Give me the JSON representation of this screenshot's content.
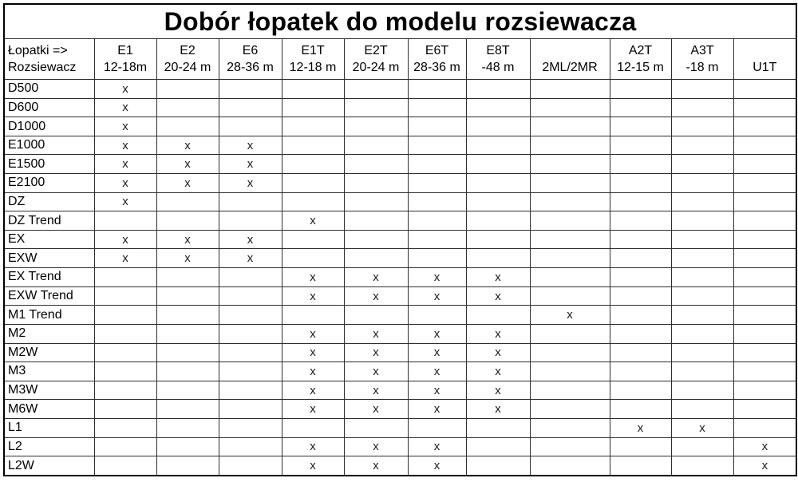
{
  "title": "Dobór łopatek do modelu rozsiewacza",
  "corner": {
    "line1": "Łopatki =>",
    "line2": "Rozsiewacz"
  },
  "mark_symbol": "x",
  "colors": {
    "border": "#000000",
    "text": "#000000",
    "background": "#ffffff"
  },
  "columns": [
    {
      "top": "E1",
      "bottom": "12-18m"
    },
    {
      "top": "E2",
      "bottom": "20-24 m"
    },
    {
      "top": "E6",
      "bottom": "28-36 m"
    },
    {
      "top": "E1T",
      "bottom": "12-18 m"
    },
    {
      "top": "E2T",
      "bottom": "20-24 m"
    },
    {
      "top": "E6T",
      "bottom": "28-36 m"
    },
    {
      "top": "E8T",
      "bottom": "-48 m"
    },
    {
      "top": "",
      "bottom": "2ML/2MR"
    },
    {
      "top": "A2T",
      "bottom": "12-15 m"
    },
    {
      "top": "A3T",
      "bottom": "-18 m"
    },
    {
      "top": "",
      "bottom": "U1T"
    }
  ],
  "rows": [
    {
      "label": "D500",
      "cells": [
        "x",
        "",
        "",
        "",
        "",
        "",
        "",
        "",
        "",
        "",
        ""
      ]
    },
    {
      "label": "D600",
      "cells": [
        "x",
        "",
        "",
        "",
        "",
        "",
        "",
        "",
        "",
        "",
        ""
      ]
    },
    {
      "label": "D1000",
      "cells": [
        "x",
        "",
        "",
        "",
        "",
        "",
        "",
        "",
        "",
        "",
        ""
      ]
    },
    {
      "label": "E1000",
      "cells": [
        "x",
        "x",
        "x",
        "",
        "",
        "",
        "",
        "",
        "",
        "",
        ""
      ]
    },
    {
      "label": "E1500",
      "cells": [
        "x",
        "x",
        "x",
        "",
        "",
        "",
        "",
        "",
        "",
        "",
        ""
      ]
    },
    {
      "label": "E2100",
      "cells": [
        "x",
        "x",
        "x",
        "",
        "",
        "",
        "",
        "",
        "",
        "",
        ""
      ]
    },
    {
      "label": "DZ",
      "cells": [
        "x",
        "",
        "",
        "",
        "",
        "",
        "",
        "",
        "",
        "",
        ""
      ]
    },
    {
      "label": "DZ Trend",
      "cells": [
        "",
        "",
        "",
        "x",
        "",
        "",
        "",
        "",
        "",
        "",
        ""
      ]
    },
    {
      "label": "EX",
      "cells": [
        "x",
        "x",
        "x",
        "",
        "",
        "",
        "",
        "",
        "",
        "",
        ""
      ]
    },
    {
      "label": "EXW",
      "cells": [
        "x",
        "x",
        "x",
        "",
        "",
        "",
        "",
        "",
        "",
        "",
        ""
      ]
    },
    {
      "label": "EX Trend",
      "cells": [
        "",
        "",
        "",
        "x",
        "x",
        "x",
        "x",
        "",
        "",
        "",
        ""
      ]
    },
    {
      "label": "EXW Trend",
      "cells": [
        "",
        "",
        "",
        "x",
        "x",
        "x",
        "x",
        "",
        "",
        "",
        ""
      ]
    },
    {
      "label": "M1 Trend",
      "cells": [
        "",
        "",
        "",
        "",
        "",
        "",
        "",
        "x",
        "",
        "",
        ""
      ]
    },
    {
      "label": "M2",
      "cells": [
        "",
        "",
        "",
        "x",
        "x",
        "x",
        "x",
        "",
        "",
        "",
        ""
      ]
    },
    {
      "label": "M2W",
      "cells": [
        "",
        "",
        "",
        "x",
        "x",
        "x",
        "x",
        "",
        "",
        "",
        ""
      ]
    },
    {
      "label": "M3",
      "cells": [
        "",
        "",
        "",
        "x",
        "x",
        "x",
        "x",
        "",
        "",
        "",
        ""
      ]
    },
    {
      "label": "M3W",
      "cells": [
        "",
        "",
        "",
        "x",
        "x",
        "x",
        "x",
        "",
        "",
        "",
        ""
      ]
    },
    {
      "label": "M6W",
      "cells": [
        "",
        "",
        "",
        "x",
        "x",
        "x",
        "x",
        "",
        "",
        "",
        ""
      ]
    },
    {
      "label": "L1",
      "cells": [
        "",
        "",
        "",
        "",
        "",
        "",
        "",
        "",
        "x",
        "x",
        ""
      ]
    },
    {
      "label": "L2",
      "cells": [
        "",
        "",
        "",
        "x",
        "x",
        "x",
        "",
        "",
        "",
        "",
        "x"
      ]
    },
    {
      "label": "L2W",
      "cells": [
        "",
        "",
        "",
        "x",
        "x",
        "x",
        "",
        "",
        "",
        "",
        "x"
      ]
    }
  ]
}
